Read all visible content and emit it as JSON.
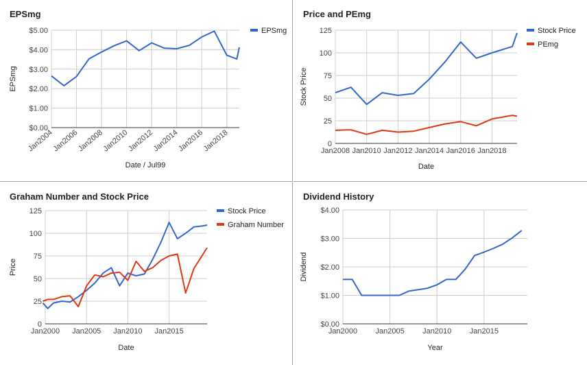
{
  "colors": {
    "blue": "#3366cc",
    "red": "#dc3912",
    "grid": "#cccccc",
    "axis": "#333333",
    "tick": "#444444"
  },
  "chart_data": [
    {
      "type": "line",
      "title": "EPSmg",
      "xlabel": "Date / Jul99",
      "ylabel": "EPSmg",
      "ylim": [
        0,
        5
      ],
      "xlim": [
        2004,
        2019
      ],
      "grid": true,
      "legend": "right",
      "ytick_labels": [
        "$0.00",
        "$1.00",
        "$2.00",
        "$3.00",
        "$4.00",
        "$5.00"
      ],
      "yticks": [
        0,
        1,
        2,
        3,
        4,
        5
      ],
      "xtick_labels": [
        "Jan2004",
        "Jan2006",
        "Jan2008",
        "Jan2010",
        "Jan2012",
        "Jan2014",
        "Jan2016",
        "Jan2018"
      ],
      "xticks": [
        2004,
        2006,
        2008,
        2010,
        2012,
        2014,
        2016,
        2018
      ],
      "series": [
        {
          "name": "EPSmg",
          "color": "#3366cc",
          "x": [
            2004,
            2005,
            2006,
            2007,
            2008,
            2009,
            2010,
            2011,
            2012,
            2013,
            2014,
            2015,
            2016,
            2017,
            2018,
            2018.8,
            2019
          ],
          "y": [
            2.65,
            2.15,
            2.62,
            3.53,
            3.88,
            4.2,
            4.45,
            3.95,
            4.35,
            4.08,
            4.05,
            4.22,
            4.65,
            4.95,
            3.72,
            3.52,
            4.12
          ]
        }
      ]
    },
    {
      "type": "line",
      "title": "Price and PEmg",
      "xlabel": "Date",
      "ylabel": "Stock Price",
      "ylim": [
        0,
        125
      ],
      "xlim": [
        2008,
        2019.6
      ],
      "grid": true,
      "legend": "right",
      "ytick_labels": [
        "0",
        "25",
        "50",
        "75",
        "100",
        "125"
      ],
      "yticks": [
        0,
        25,
        50,
        75,
        100,
        125
      ],
      "xtick_labels": [
        "Jan2008",
        "Jan2010",
        "Jan2012",
        "Jan2014",
        "Jan2016",
        "Jan2018"
      ],
      "xticks": [
        2008,
        2010,
        2012,
        2014,
        2016,
        2018
      ],
      "series": [
        {
          "name": "Stock Price",
          "color": "#3366cc",
          "x": [
            2008,
            2009,
            2010,
            2011,
            2012,
            2013,
            2014,
            2015,
            2016,
            2017,
            2018,
            2019.3,
            2019.6
          ],
          "y": [
            56,
            62,
            43,
            56,
            53,
            55,
            71,
            90,
            112,
            94,
            100,
            107,
            122
          ]
        },
        {
          "name": "PEmg",
          "color": "#dc3912",
          "x": [
            2008,
            2009,
            2010,
            2011,
            2012,
            2013,
            2014,
            2015,
            2016,
            2017,
            2018,
            2019.3,
            2019.6
          ],
          "y": [
            14.5,
            15,
            10,
            14.5,
            12.5,
            13.5,
            17.5,
            21.5,
            24,
            19.5,
            27,
            31,
            30
          ]
        }
      ]
    },
    {
      "type": "line",
      "title": "Graham Number and Stock Price",
      "xlabel": "Date",
      "ylabel": "Price",
      "ylim": [
        0,
        125
      ],
      "xlim": [
        2000,
        2019.6
      ],
      "grid": true,
      "legend": "right",
      "ytick_labels": [
        "0",
        "25",
        "50",
        "75",
        "100",
        "125"
      ],
      "yticks": [
        0,
        25,
        50,
        75,
        100,
        125
      ],
      "xtick_labels": [
        "Jan2000",
        "Jan2005",
        "Jan2010",
        "Jan2015"
      ],
      "xticks": [
        2000,
        2005,
        2010,
        2015
      ],
      "series": [
        {
          "name": "Stock Price",
          "color": "#3366cc",
          "x": [
            1999.7,
            2000.3,
            2001,
            2002,
            2003,
            2004,
            2005,
            2006,
            2007,
            2008,
            2009,
            2010,
            2011,
            2012,
            2013,
            2014,
            2015,
            2016,
            2017,
            2018,
            2019,
            2019.6
          ],
          "y": [
            23,
            17,
            23,
            25,
            24,
            30,
            37,
            45,
            56,
            62,
            42,
            56,
            53,
            55,
            71,
            90,
            112,
            94,
            100,
            107,
            108,
            109
          ]
        },
        {
          "name": "Graham Number",
          "color": "#dc3912",
          "x": [
            1999.7,
            2000.3,
            2001,
            2002,
            2003,
            2004,
            2005,
            2006,
            2007,
            2008,
            2009,
            2010,
            2011,
            2012,
            2013,
            2014,
            2015,
            2016,
            2017,
            2018,
            2019.6
          ],
          "y": [
            25,
            27,
            27,
            30,
            31,
            19,
            42,
            54,
            52,
            56,
            57,
            48,
            69,
            58,
            62,
            70,
            75,
            77,
            34,
            61,
            84
          ]
        }
      ]
    },
    {
      "type": "line",
      "title": "Dividend History",
      "xlabel": "Year",
      "ylabel": "Dividend",
      "ylim": [
        0,
        4
      ],
      "xlim": [
        2000,
        2019.6
      ],
      "grid": true,
      "ytick_labels": [
        "$0.00",
        "$1.00",
        "$2.00",
        "$3.00",
        "$4.00"
      ],
      "yticks": [
        0,
        1,
        2,
        3,
        4
      ],
      "xtick_labels": [
        "Jan2000",
        "Jan2005",
        "Jan2010",
        "Jan2015"
      ],
      "xticks": [
        2000,
        2005,
        2010,
        2015
      ],
      "series": [
        {
          "name": "",
          "color": "#3366cc",
          "x": [
            2000,
            2001,
            2002,
            2003,
            2004,
            2005,
            2006,
            2007,
            2008,
            2009,
            2010,
            2011,
            2012,
            2013,
            2014,
            2015,
            2016,
            2017,
            2018,
            2019
          ],
          "y": [
            1.56,
            1.56,
            1.0,
            1.0,
            1.0,
            1.0,
            1.0,
            1.15,
            1.2,
            1.25,
            1.37,
            1.56,
            1.56,
            1.92,
            2.4,
            2.52,
            2.65,
            2.8,
            3.02,
            3.28
          ]
        }
      ]
    }
  ]
}
